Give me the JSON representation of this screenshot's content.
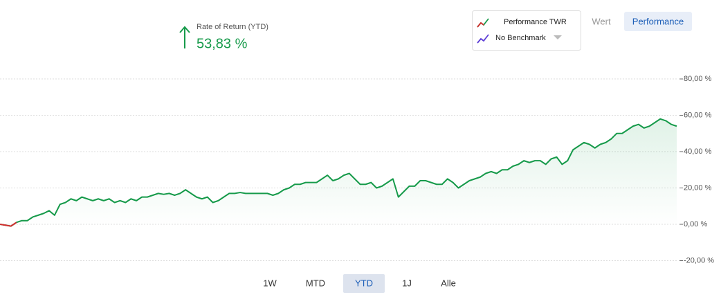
{
  "header": {
    "label": "Rate of Return (YTD)",
    "value": "53,83 %"
  },
  "legend": {
    "primary": "Performance TWR",
    "benchmark": "No Benchmark"
  },
  "view_buttons": [
    "Wert",
    "Performance"
  ],
  "active_view_index": 1,
  "ranges": [
    "1W",
    "MTD",
    "YTD",
    "1J",
    "Alle"
  ],
  "active_range_index": 2,
  "chart_data": {
    "type": "line",
    "series": [
      {
        "name": "Performance TWR",
        "color": "#169a4a",
        "negative_color": "#d32f2f",
        "values": [
          0,
          -0.5,
          -1,
          1,
          2,
          2,
          4,
          5,
          6,
          7.5,
          5,
          11,
          12,
          14,
          13,
          15,
          14,
          13,
          14,
          13,
          14,
          12,
          13,
          12,
          14,
          13,
          15,
          15,
          16,
          17,
          16.5,
          17,
          16,
          17,
          19,
          17,
          15,
          14,
          15,
          12,
          13,
          15,
          17,
          17,
          17.5,
          17,
          17,
          17,
          17,
          17,
          16,
          17,
          19,
          20,
          22,
          22,
          23,
          23,
          23,
          25,
          27,
          24,
          25,
          27,
          28,
          25,
          22,
          22,
          23,
          20,
          21,
          23,
          25,
          15,
          18,
          21,
          21,
          24,
          24,
          23,
          22,
          22,
          25,
          23,
          20,
          22,
          24,
          25,
          26,
          28,
          29,
          28,
          30,
          30,
          32,
          33,
          35,
          34,
          35,
          35,
          33,
          36,
          37,
          33,
          35,
          41,
          43,
          45,
          44,
          42,
          44,
          45,
          47,
          50,
          50,
          52,
          54,
          55,
          53,
          54,
          56,
          58,
          57,
          55,
          54
        ]
      }
    ],
    "ylim": [
      -25,
      85
    ],
    "yticks": [
      {
        "value": 80,
        "label": "80,00 %"
      },
      {
        "value": 60,
        "label": "60,00 %"
      },
      {
        "value": 40,
        "label": "40,00 %"
      },
      {
        "value": 20,
        "label": "20,00 %"
      },
      {
        "value": 0,
        "label": "0,00 %"
      },
      {
        "value": -20,
        "label": "-20,00 %"
      }
    ],
    "grid": true,
    "area_fill": true
  }
}
